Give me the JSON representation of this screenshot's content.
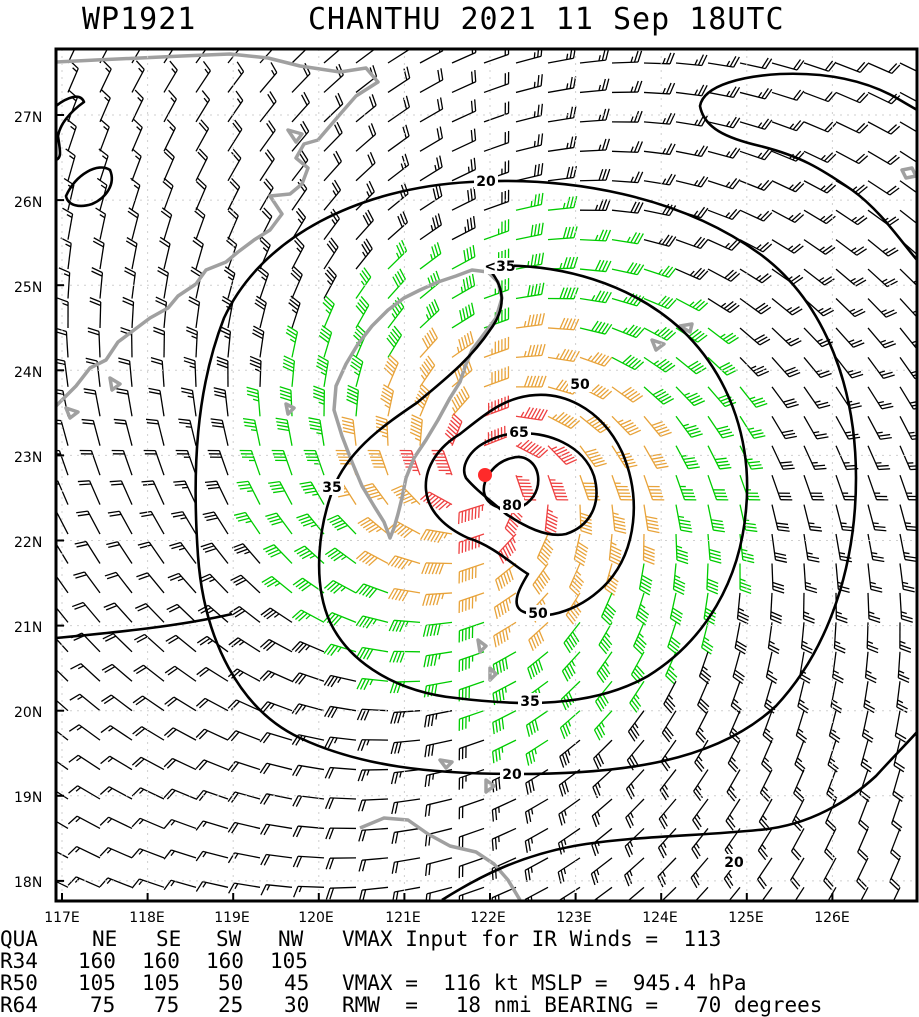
{
  "title": {
    "storm_id": "WP1921",
    "storm_line": "CHANTHU 2021 11 Sep 18UTC"
  },
  "colors": {
    "wind_34_50": "#00cc00",
    "wind_50_64": "#e8a33a",
    "wind_64_plus": "#ee4040",
    "wind_below_34": "#000000",
    "land_outline": "#a0a0a0",
    "center": "#ff2a2a"
  },
  "map": {
    "lat_labels": [
      "27N",
      "26N",
      "25N",
      "24N",
      "23N",
      "22N",
      "21N",
      "20N",
      "19N",
      "18N"
    ],
    "lon_labels": [
      "117E",
      "118E",
      "119E",
      "120E",
      "121E",
      "122E",
      "123E",
      "124E",
      "125E",
      "126E"
    ],
    "contour_labels": [
      {
        "id": "c20-top",
        "text": "20"
      },
      {
        "id": "c35-top",
        "text": "<35"
      },
      {
        "id": "c50-top",
        "text": "50"
      },
      {
        "id": "c65",
        "text": "65"
      },
      {
        "id": "c80",
        "text": "80"
      },
      {
        "id": "c35-left",
        "text": "35"
      },
      {
        "id": "c50-bot",
        "text": "50"
      },
      {
        "id": "c35-bot",
        "text": "35"
      },
      {
        "id": "c20-bot",
        "text": "20"
      },
      {
        "id": "c20-se",
        "text": "20"
      }
    ],
    "center": {
      "lat": 22.75,
      "lon": 121.9
    }
  },
  "info": {
    "header": [
      "QUA",
      "NE",
      "SE",
      "SW",
      "NW"
    ],
    "r34": [
      "R34",
      "160",
      "160",
      "160",
      "105"
    ],
    "r50": [
      "R50",
      "105",
      "105",
      "50",
      "45"
    ],
    "r64": [
      "R64",
      "75",
      "75",
      "25",
      "30"
    ],
    "vmax_input_line": "VMAX Input for IR Winds =  113",
    "vmax_line": "VMAX =  116 kt MSLP =  945.4 hPa",
    "rmw_line": "RMW  =   18 nmi BEARING =   70 degrees"
  }
}
